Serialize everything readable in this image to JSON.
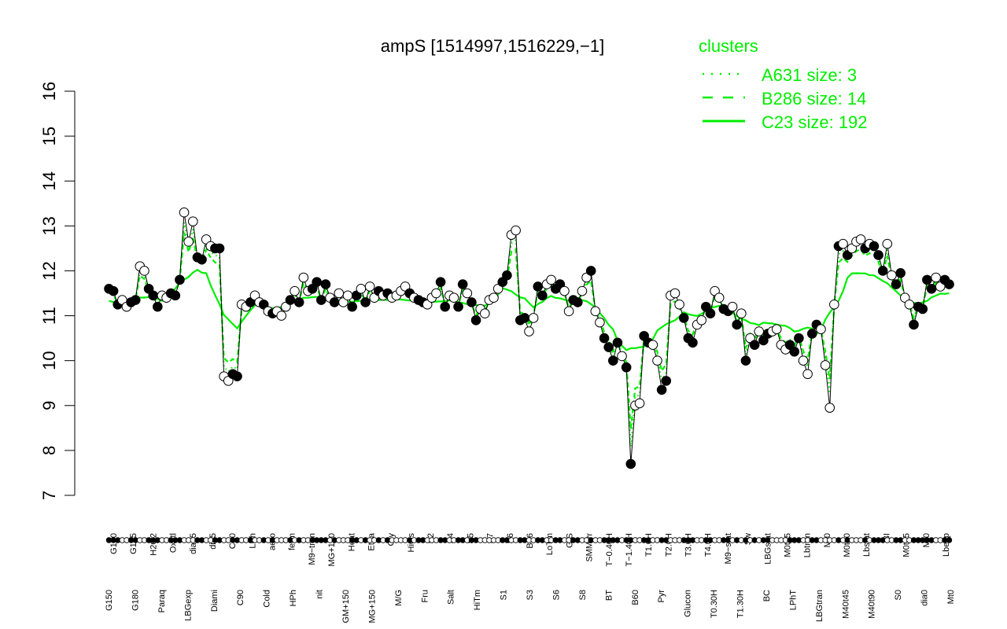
{
  "chart_data": {
    "type": "line",
    "title": "ampS [1514997,1516229,−1]",
    "ylim": [
      7,
      16
    ],
    "yticks": [
      7,
      8,
      9,
      10,
      11,
      12,
      13,
      14,
      15,
      16
    ],
    "grid": false,
    "legend": {
      "title": "clusters",
      "placement": "top-right",
      "entries": [
        {
          "label": "A631 size: 3",
          "style": "dotted"
        },
        {
          "label": "B286 size: 14",
          "style": "dashed"
        },
        {
          "label": "C23 size: 192",
          "style": "solid"
        }
      ]
    },
    "top_labels": [
      "G150",
      "G135",
      "H2O2",
      "Oxctl",
      "dia15",
      "dia5",
      "C30",
      "LPh",
      "aero",
      "ferm",
      "M9−tran",
      "MG+120",
      "Heat",
      "Etha",
      "Gly",
      "HiOs",
      "S2",
      "S4",
      "S5",
      "S7",
      "S6",
      "B36",
      "LoTm",
      "G/S",
      "SMMPr",
      "T−0.40H",
      "T−1.40H",
      "T1.0H",
      "T2.0H",
      "T3.0H",
      "T4.0H",
      "M9−stat",
      "Sw",
      "LBGstat",
      "M0t45",
      "Lbtran",
      "Mt0",
      "M0t90",
      "Lbstat",
      "BI",
      "M0t45",
      "Mt0",
      "Lbexp"
    ],
    "bottom_labels": [
      "G150",
      "G180",
      "Paraq",
      "LBGexp",
      "Diami",
      "C90",
      "Cold",
      "HPh",
      "nit",
      "GM+150",
      "MG+150",
      "M/G",
      "Fru",
      "Salt",
      "HiTm",
      "S1",
      "S3",
      "S6",
      "S8",
      "BT",
      "B60",
      "Pyr",
      "Glucon",
      "T0.30H",
      "T1.30H",
      "BC",
      "LPhT",
      "LBGtran",
      "M40t45",
      "M40t90",
      "S0",
      "dia0",
      "Mt0"
    ],
    "points": [
      {
        "x": 1,
        "y": 11.6,
        "filled": true
      },
      {
        "x": 2,
        "y": 11.55,
        "filled": true
      },
      {
        "x": 3,
        "y": 11.25,
        "filled": true
      },
      {
        "x": 4,
        "y": 11.35,
        "filled": false
      },
      {
        "x": 5,
        "y": 11.2,
        "filled": false
      },
      {
        "x": 6,
        "y": 11.3,
        "filled": true
      },
      {
        "x": 7,
        "y": 11.35,
        "filled": true
      },
      {
        "x": 8,
        "y": 12.1,
        "filled": false
      },
      {
        "x": 9,
        "y": 12.0,
        "filled": false
      },
      {
        "x": 10,
        "y": 11.6,
        "filled": true
      },
      {
        "x": 11,
        "y": 11.45,
        "filled": true
      },
      {
        "x": 12,
        "y": 11.2,
        "filled": true
      },
      {
        "x": 13,
        "y": 11.45,
        "filled": false
      },
      {
        "x": 14,
        "y": 11.4,
        "filled": false
      },
      {
        "x": 15,
        "y": 11.5,
        "filled": true
      },
      {
        "x": 16,
        "y": 11.45,
        "filled": true
      },
      {
        "x": 17,
        "y": 11.8,
        "filled": true
      },
      {
        "x": 18,
        "y": 13.3,
        "filled": false
      },
      {
        "x": 19,
        "y": 12.65,
        "filled": false
      },
      {
        "x": 20,
        "y": 13.1,
        "filled": false
      },
      {
        "x": 21,
        "y": 12.3,
        "filled": true
      },
      {
        "x": 22,
        "y": 12.25,
        "filled": true
      },
      {
        "x": 23,
        "y": 12.7,
        "filled": false
      },
      {
        "x": 24,
        "y": 12.55,
        "filled": false
      },
      {
        "x": 25,
        "y": 12.5,
        "filled": true
      },
      {
        "x": 26,
        "y": 12.5,
        "filled": true
      },
      {
        "x": 27,
        "y": 9.65,
        "filled": false
      },
      {
        "x": 28,
        "y": 9.55,
        "filled": false
      },
      {
        "x": 29,
        "y": 9.7,
        "filled": true
      },
      {
        "x": 30,
        "y": 9.65,
        "filled": true
      },
      {
        "x": 31,
        "y": 11.25,
        "filled": false
      },
      {
        "x": 32,
        "y": 11.2,
        "filled": false
      },
      {
        "x": 33,
        "y": 11.3,
        "filled": true
      },
      {
        "x": 34,
        "y": 11.45,
        "filled": false
      },
      {
        "x": 35,
        "y": 11.3,
        "filled": false
      },
      {
        "x": 36,
        "y": 11.25,
        "filled": true
      },
      {
        "x": 37,
        "y": 11.1,
        "filled": false
      },
      {
        "x": 38,
        "y": 11.05,
        "filled": true
      },
      {
        "x": 39,
        "y": 11.1,
        "filled": false
      },
      {
        "x": 40,
        "y": 11.0,
        "filled": false
      },
      {
        "x": 41,
        "y": 11.2,
        "filled": false
      },
      {
        "x": 42,
        "y": 11.35,
        "filled": true
      },
      {
        "x": 43,
        "y": 11.55,
        "filled": false
      },
      {
        "x": 44,
        "y": 11.3,
        "filled": true
      },
      {
        "x": 45,
        "y": 11.85,
        "filled": false
      },
      {
        "x": 46,
        "y": 11.55,
        "filled": false
      },
      {
        "x": 47,
        "y": 11.6,
        "filled": true
      },
      {
        "x": 48,
        "y": 11.75,
        "filled": true
      },
      {
        "x": 49,
        "y": 11.35,
        "filled": true
      },
      {
        "x": 50,
        "y": 11.7,
        "filled": true
      },
      {
        "x": 51,
        "y": 11.4,
        "filled": false
      },
      {
        "x": 52,
        "y": 11.3,
        "filled": true
      },
      {
        "x": 53,
        "y": 11.5,
        "filled": false
      },
      {
        "x": 54,
        "y": 11.3,
        "filled": false
      },
      {
        "x": 55,
        "y": 11.45,
        "filled": false
      },
      {
        "x": 56,
        "y": 11.2,
        "filled": true
      },
      {
        "x": 57,
        "y": 11.45,
        "filled": true
      },
      {
        "x": 58,
        "y": 11.6,
        "filled": false
      },
      {
        "x": 59,
        "y": 11.3,
        "filled": true
      },
      {
        "x": 60,
        "y": 11.65,
        "filled": false
      },
      {
        "x": 61,
        "y": 11.4,
        "filled": false
      },
      {
        "x": 62,
        "y": 11.55,
        "filled": true
      },
      {
        "x": 63,
        "y": 11.45,
        "filled": false
      },
      {
        "x": 64,
        "y": 11.5,
        "filled": true
      },
      {
        "x": 65,
        "y": 11.4,
        "filled": false
      },
      {
        "x": 66,
        "y": 11.45,
        "filled": false
      },
      {
        "x": 67,
        "y": 11.55,
        "filled": false
      },
      {
        "x": 68,
        "y": 11.65,
        "filled": false
      },
      {
        "x": 69,
        "y": 11.5,
        "filled": true
      },
      {
        "x": 70,
        "y": 11.4,
        "filled": false
      },
      {
        "x": 71,
        "y": 11.35,
        "filled": true
      },
      {
        "x": 72,
        "y": 11.3,
        "filled": true
      },
      {
        "x": 73,
        "y": 11.25,
        "filled": false
      },
      {
        "x": 74,
        "y": 11.4,
        "filled": false
      },
      {
        "x": 75,
        "y": 11.5,
        "filled": false
      },
      {
        "x": 76,
        "y": 11.75,
        "filled": true
      },
      {
        "x": 77,
        "y": 11.2,
        "filled": true
      },
      {
        "x": 78,
        "y": 11.45,
        "filled": false
      },
      {
        "x": 79,
        "y": 11.4,
        "filled": false
      },
      {
        "x": 80,
        "y": 11.2,
        "filled": true
      },
      {
        "x": 81,
        "y": 11.7,
        "filled": true
      },
      {
        "x": 82,
        "y": 11.5,
        "filled": false
      },
      {
        "x": 83,
        "y": 11.3,
        "filled": true
      },
      {
        "x": 84,
        "y": 10.9,
        "filled": true
      },
      {
        "x": 85,
        "y": 11.15,
        "filled": false
      },
      {
        "x": 86,
        "y": 11.05,
        "filled": false
      },
      {
        "x": 87,
        "y": 11.35,
        "filled": false
      },
      {
        "x": 88,
        "y": 11.4,
        "filled": false
      },
      {
        "x": 89,
        "y": 11.6,
        "filled": false
      },
      {
        "x": 90,
        "y": 11.75,
        "filled": true
      },
      {
        "x": 91,
        "y": 11.9,
        "filled": true
      },
      {
        "x": 92,
        "y": 12.8,
        "filled": false
      },
      {
        "x": 93,
        "y": 12.9,
        "filled": false
      },
      {
        "x": 94,
        "y": 10.9,
        "filled": true
      },
      {
        "x": 95,
        "y": 10.95,
        "filled": true
      },
      {
        "x": 96,
        "y": 10.65,
        "filled": false
      },
      {
        "x": 97,
        "y": 10.95,
        "filled": false
      },
      {
        "x": 98,
        "y": 11.65,
        "filled": true
      },
      {
        "x": 99,
        "y": 11.45,
        "filled": true
      },
      {
        "x": 100,
        "y": 11.7,
        "filled": false
      },
      {
        "x": 101,
        "y": 11.8,
        "filled": false
      },
      {
        "x": 102,
        "y": 11.6,
        "filled": true
      },
      {
        "x": 103,
        "y": 11.7,
        "filled": true
      },
      {
        "x": 104,
        "y": 11.55,
        "filled": false
      },
      {
        "x": 105,
        "y": 11.1,
        "filled": false
      },
      {
        "x": 106,
        "y": 11.35,
        "filled": true
      },
      {
        "x": 107,
        "y": 11.3,
        "filled": true
      },
      {
        "x": 108,
        "y": 11.55,
        "filled": false
      },
      {
        "x": 109,
        "y": 11.85,
        "filled": false
      },
      {
        "x": 110,
        "y": 12.0,
        "filled": true
      },
      {
        "x": 111,
        "y": 11.1,
        "filled": false
      },
      {
        "x": 112,
        "y": 10.85,
        "filled": false
      },
      {
        "x": 113,
        "y": 10.5,
        "filled": true
      },
      {
        "x": 114,
        "y": 10.3,
        "filled": true
      },
      {
        "x": 115,
        "y": 10.0,
        "filled": true
      },
      {
        "x": 116,
        "y": 10.4,
        "filled": true
      },
      {
        "x": 117,
        "y": 10.1,
        "filled": false
      },
      {
        "x": 118,
        "y": 9.85,
        "filled": true
      },
      {
        "x": 119,
        "y": 7.7,
        "filled": true
      },
      {
        "x": 120,
        "y": 9.0,
        "filled": false
      },
      {
        "x": 121,
        "y": 9.05,
        "filled": false
      },
      {
        "x": 122,
        "y": 10.55,
        "filled": true
      },
      {
        "x": 123,
        "y": 10.4,
        "filled": true
      },
      {
        "x": 124,
        "y": 10.35,
        "filled": false
      },
      {
        "x": 125,
        "y": 10.0,
        "filled": false
      },
      {
        "x": 126,
        "y": 9.35,
        "filled": true
      },
      {
        "x": 127,
        "y": 9.55,
        "filled": true
      },
      {
        "x": 128,
        "y": 11.45,
        "filled": false
      },
      {
        "x": 129,
        "y": 11.5,
        "filled": false
      },
      {
        "x": 130,
        "y": 11.25,
        "filled": false
      },
      {
        "x": 131,
        "y": 10.95,
        "filled": true
      },
      {
        "x": 132,
        "y": 10.5,
        "filled": true
      },
      {
        "x": 133,
        "y": 10.4,
        "filled": true
      },
      {
        "x": 134,
        "y": 10.8,
        "filled": false
      },
      {
        "x": 135,
        "y": 10.9,
        "filled": false
      },
      {
        "x": 136,
        "y": 11.2,
        "filled": true
      },
      {
        "x": 137,
        "y": 11.05,
        "filled": true
      },
      {
        "x": 138,
        "y": 11.55,
        "filled": false
      },
      {
        "x": 139,
        "y": 11.4,
        "filled": false
      },
      {
        "x": 140,
        "y": 11.15,
        "filled": true
      },
      {
        "x": 141,
        "y": 11.1,
        "filled": true
      },
      {
        "x": 142,
        "y": 11.2,
        "filled": false
      },
      {
        "x": 143,
        "y": 10.8,
        "filled": true
      },
      {
        "x": 144,
        "y": 11.05,
        "filled": false
      },
      {
        "x": 145,
        "y": 10.0,
        "filled": true
      },
      {
        "x": 146,
        "y": 10.5,
        "filled": false
      },
      {
        "x": 147,
        "y": 10.35,
        "filled": true
      },
      {
        "x": 148,
        "y": 10.65,
        "filled": false
      },
      {
        "x": 149,
        "y": 10.45,
        "filled": true
      },
      {
        "x": 150,
        "y": 10.6,
        "filled": true
      },
      {
        "x": 151,
        "y": 10.65,
        "filled": false
      },
      {
        "x": 152,
        "y": 10.7,
        "filled": false
      },
      {
        "x": 153,
        "y": 10.35,
        "filled": false
      },
      {
        "x": 154,
        "y": 10.25,
        "filled": false
      },
      {
        "x": 155,
        "y": 10.35,
        "filled": true
      },
      {
        "x": 156,
        "y": 10.2,
        "filled": true
      },
      {
        "x": 157,
        "y": 10.5,
        "filled": true
      },
      {
        "x": 158,
        "y": 10.0,
        "filled": false
      },
      {
        "x": 159,
        "y": 9.7,
        "filled": false
      },
      {
        "x": 160,
        "y": 10.6,
        "filled": true
      },
      {
        "x": 161,
        "y": 10.8,
        "filled": true
      },
      {
        "x": 162,
        "y": 10.7,
        "filled": false
      },
      {
        "x": 163,
        "y": 9.9,
        "filled": false
      },
      {
        "x": 164,
        "y": 8.95,
        "filled": false
      },
      {
        "x": 165,
        "y": 11.25,
        "filled": false
      },
      {
        "x": 166,
        "y": 12.55,
        "filled": true
      },
      {
        "x": 167,
        "y": 12.6,
        "filled": false
      },
      {
        "x": 168,
        "y": 12.35,
        "filled": true
      },
      {
        "x": 169,
        "y": 12.5,
        "filled": false
      },
      {
        "x": 170,
        "y": 12.65,
        "filled": false
      },
      {
        "x": 171,
        "y": 12.7,
        "filled": false
      },
      {
        "x": 172,
        "y": 12.5,
        "filled": true
      },
      {
        "x": 173,
        "y": 12.6,
        "filled": false
      },
      {
        "x": 174,
        "y": 12.55,
        "filled": true
      },
      {
        "x": 175,
        "y": 12.35,
        "filled": true
      },
      {
        "x": 176,
        "y": 12.0,
        "filled": true
      },
      {
        "x": 177,
        "y": 12.6,
        "filled": false
      },
      {
        "x": 178,
        "y": 11.9,
        "filled": false
      },
      {
        "x": 179,
        "y": 11.7,
        "filled": true
      },
      {
        "x": 180,
        "y": 11.95,
        "filled": true
      },
      {
        "x": 181,
        "y": 11.4,
        "filled": false
      },
      {
        "x": 182,
        "y": 11.25,
        "filled": false
      },
      {
        "x": 183,
        "y": 10.8,
        "filled": true
      },
      {
        "x": 184,
        "y": 11.2,
        "filled": true
      },
      {
        "x": 185,
        "y": 11.15,
        "filled": true
      },
      {
        "x": 186,
        "y": 11.8,
        "filled": true
      },
      {
        "x": 187,
        "y": 11.6,
        "filled": true
      },
      {
        "x": 188,
        "y": 11.85,
        "filled": false
      },
      {
        "x": 189,
        "y": 11.65,
        "filled": false
      },
      {
        "x": 190,
        "y": 11.8,
        "filled": true
      },
      {
        "x": 191,
        "y": 11.7,
        "filled": true
      }
    ]
  }
}
